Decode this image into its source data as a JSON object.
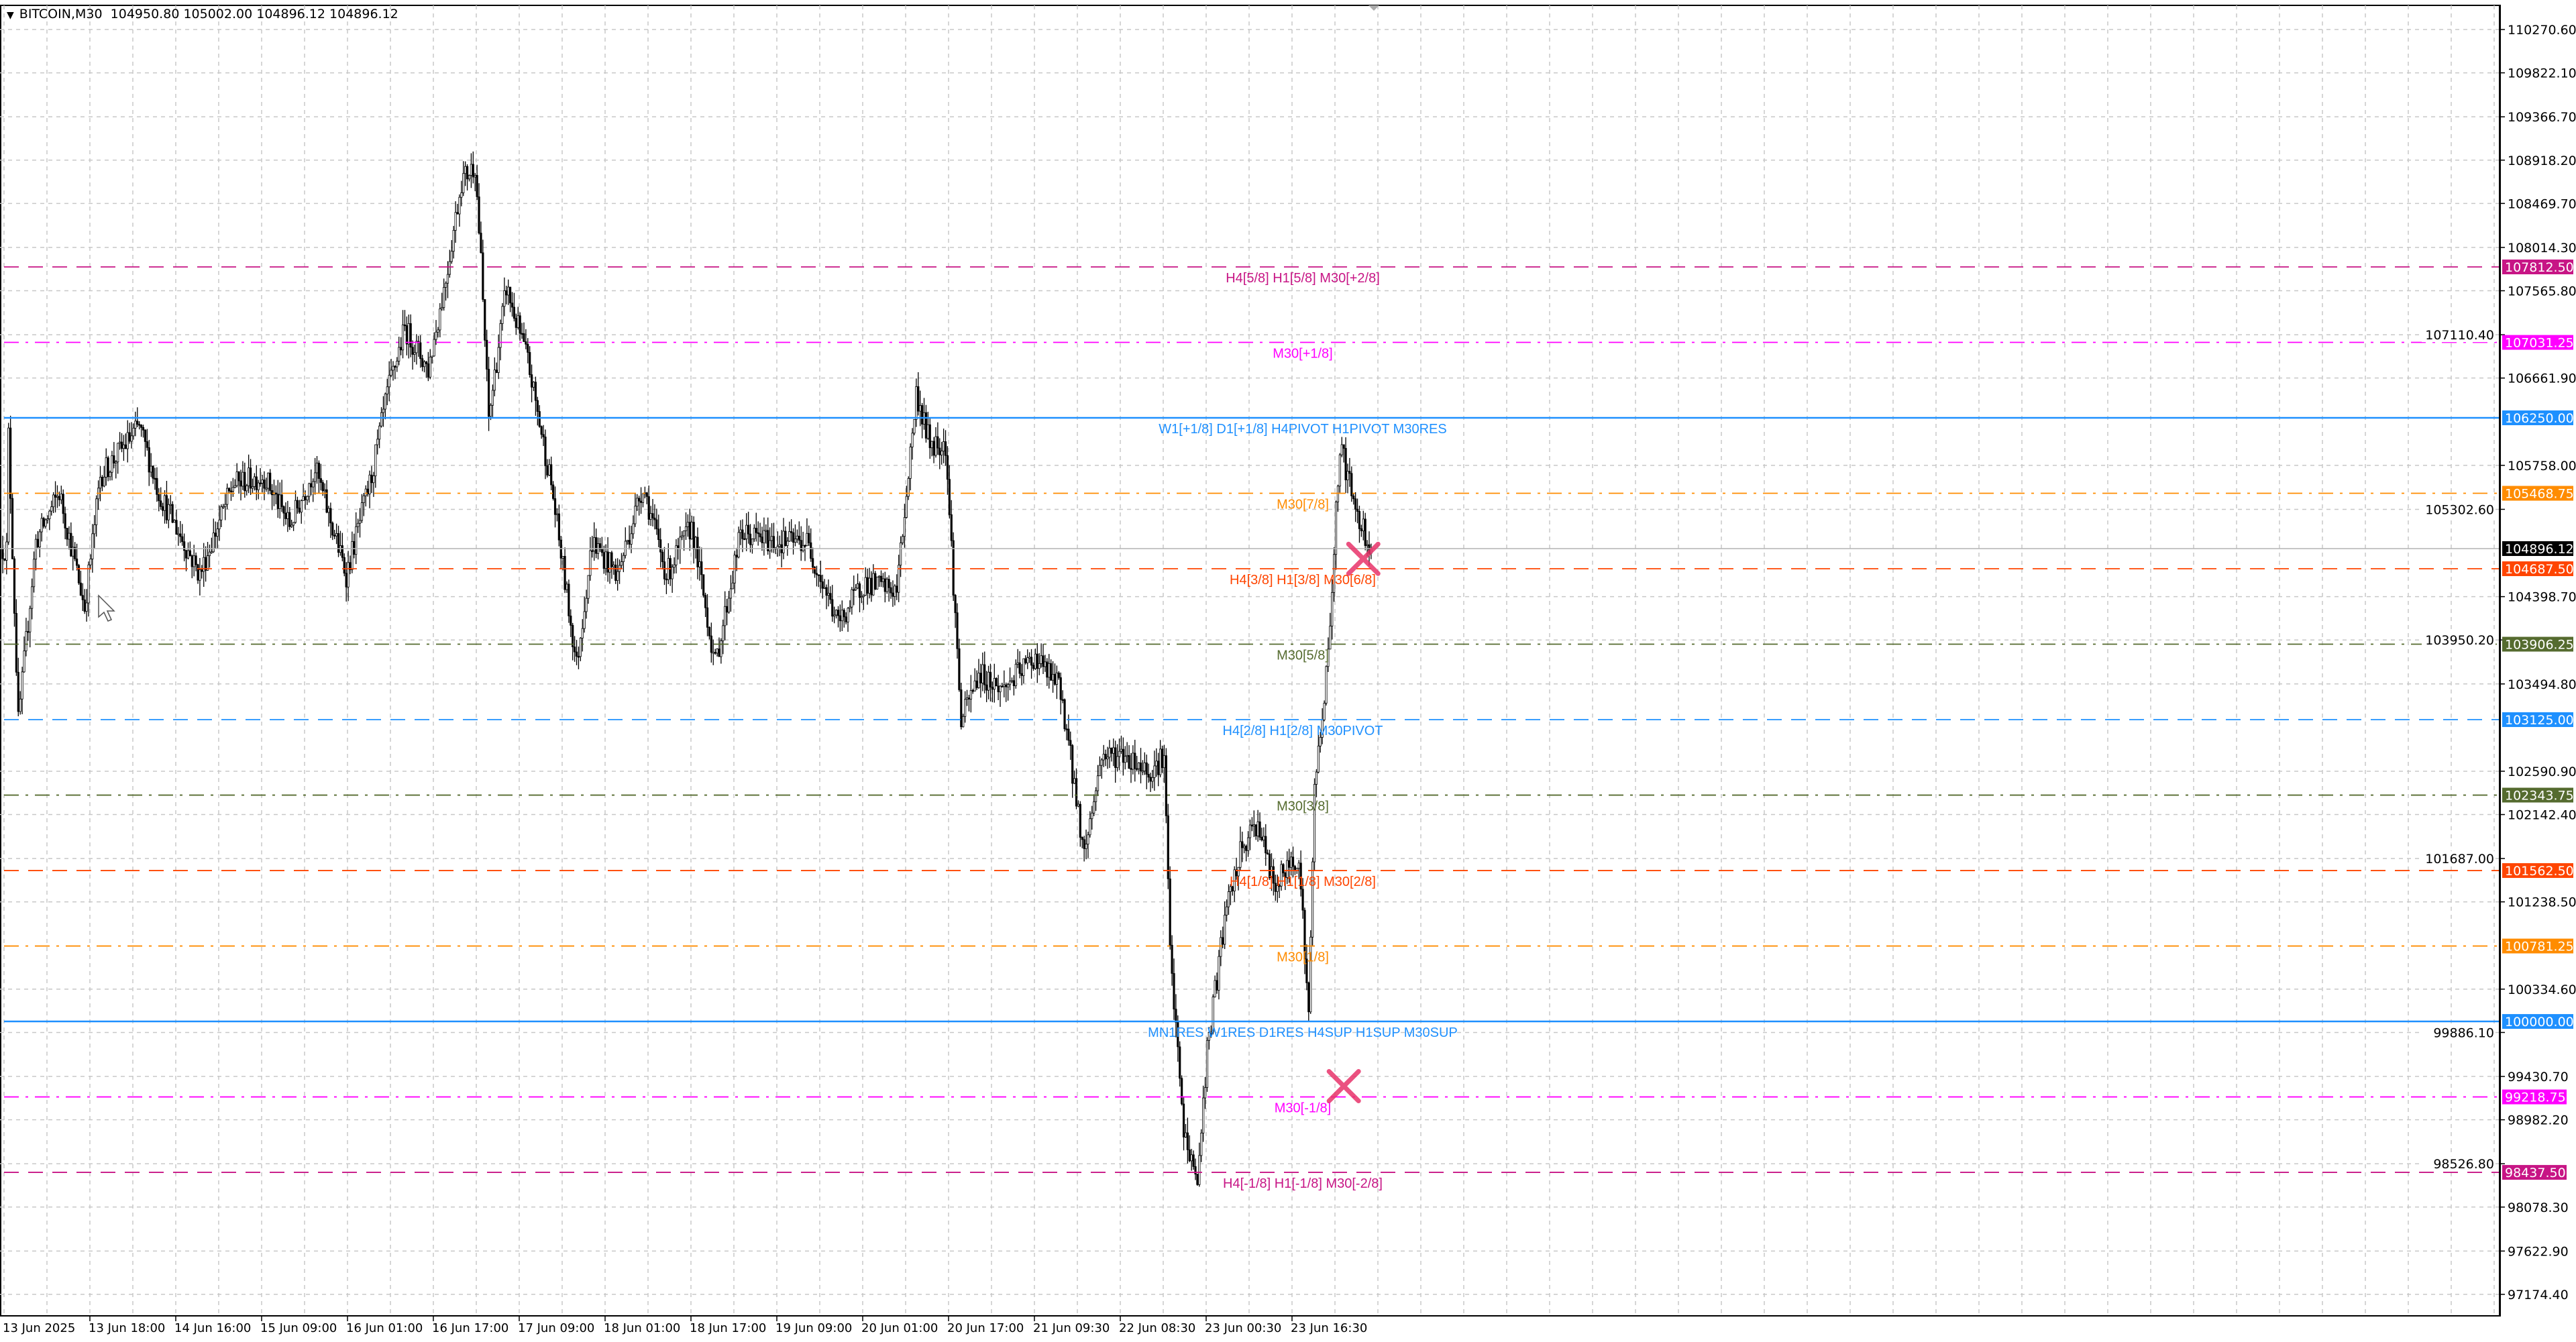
{
  "header": {
    "symbol": "BITCOIN,M30",
    "ohlc": "104950.80 105002.00 104896.12 104896.12",
    "collapse_icon": "triangle-down-icon"
  },
  "chart_data": {
    "type": "candlestick",
    "symbol": "BITCOIN",
    "timeframe": "M30",
    "ylim": [
      96900,
      110500
    ],
    "grid": true,
    "y_ticks": [
      "110270.60",
      "109822.10",
      "109366.70",
      "108918.20",
      "108469.70",
      "108014.30",
      "107565.80",
      "107110.40",
      "106661.90",
      "105758.00",
      "105302.60",
      "104398.70",
      "103950.20",
      "103494.80",
      "102590.90",
      "102142.40",
      "101687.00",
      "101238.50",
      "100334.60",
      "99886.10",
      "99430.70",
      "98982.20",
      "98526.80",
      "98078.30",
      "97622.90",
      "97174.40"
    ],
    "x_ticks": [
      "13 Jun 2025",
      "13 Jun 18:00",
      "14 Jun 16:00",
      "15 Jun 09:00",
      "16 Jun 01:00",
      "16 Jun 17:00",
      "17 Jun 09:00",
      "18 Jun 01:00",
      "18 Jun 17:00",
      "19 Jun 09:00",
      "20 Jun 01:00",
      "20 Jun 17:00",
      "21 Jun 09:30",
      "22 Jun 08:30",
      "23 Jun 00:30",
      "23 Jun 16:30"
    ],
    "current_price": {
      "value": 104896.12,
      "label": "104896.12",
      "color": "#000000"
    },
    "approx_close_path": [
      [
        3,
        106071
      ],
      [
        8,
        103097
      ],
      [
        17,
        104967
      ],
      [
        29,
        105477
      ],
      [
        42,
        104287
      ],
      [
        50,
        105647
      ],
      [
        70,
        106157
      ],
      [
        80,
        105477
      ],
      [
        101,
        104627
      ],
      [
        118,
        105562
      ],
      [
        134,
        105647
      ],
      [
        147,
        105137
      ],
      [
        160,
        105732
      ],
      [
        176,
        104627
      ],
      [
        189,
        105647
      ],
      [
        197,
        106497
      ],
      [
        206,
        107177
      ],
      [
        218,
        106752
      ],
      [
        227,
        107687
      ],
      [
        235,
        108707
      ],
      [
        242,
        108877
      ],
      [
        245,
        107857
      ],
      [
        249,
        106242
      ],
      [
        258,
        107602
      ],
      [
        269,
        106837
      ],
      [
        281,
        105562
      ],
      [
        294,
        103692
      ],
      [
        302,
        104967
      ],
      [
        315,
        104627
      ],
      [
        328,
        105562
      ],
      [
        340,
        104627
      ],
      [
        353,
        105137
      ],
      [
        365,
        103692
      ],
      [
        378,
        105052
      ],
      [
        395,
        104967
      ],
      [
        412,
        104967
      ],
      [
        428,
        104117
      ],
      [
        441,
        104542
      ],
      [
        458,
        104457
      ],
      [
        468,
        106497
      ],
      [
        475,
        105987
      ],
      [
        483,
        105987
      ],
      [
        491,
        103097
      ],
      [
        500,
        103607
      ],
      [
        512,
        103437
      ],
      [
        529,
        103777
      ],
      [
        542,
        103437
      ],
      [
        554,
        101737
      ],
      [
        563,
        102757
      ],
      [
        575,
        102757
      ],
      [
        588,
        102587
      ],
      [
        595,
        102757
      ],
      [
        598,
        100717
      ],
      [
        605,
        98847
      ],
      [
        612,
        98337
      ],
      [
        617,
        99697
      ],
      [
        626,
        101057
      ],
      [
        634,
        101737
      ],
      [
        643,
        102077
      ],
      [
        651,
        101397
      ],
      [
        664,
        101737
      ],
      [
        669,
        100037
      ],
      [
        672,
        102417
      ],
      [
        679,
        103777
      ],
      [
        685,
        105987
      ],
      [
        693,
        105307
      ],
      [
        701,
        104896
      ]
    ],
    "levels": [
      {
        "price": 107812.5,
        "label": "107812.50",
        "text": "H4[5/8] H1[5/8] M30[+2/8]",
        "color": "#C71585",
        "style": "dashed"
      },
      {
        "price": 107031.25,
        "label": "107031.25",
        "text": "M30[+1/8]",
        "color": "#FF00FF",
        "style": "dashdot"
      },
      {
        "price": 106250.0,
        "label": "106250.00",
        "text": "W1[+1/8] D1[+1/8] H4PIVOT H1PIVOT M30RES",
        "color": "#1E90FF",
        "style": "solid"
      },
      {
        "price": 105468.75,
        "label": "105468.75",
        "text": "M30[7/8]",
        "color": "#FF8C00",
        "style": "dashdot"
      },
      {
        "price": 104687.5,
        "label": "104687.50",
        "text": "H4[3/8] H1[3/8] M30[6/8]",
        "color": "#FF4500",
        "style": "dashed"
      },
      {
        "price": 103906.25,
        "label": "103906.25",
        "text": "M30[5/8]",
        "color": "#556B2F",
        "style": "dashdot"
      },
      {
        "price": 103125.0,
        "label": "103125.00",
        "text": "H4[2/8] H1[2/8] M30PIVOT",
        "color": "#1E90FF",
        "style": "dashed"
      },
      {
        "price": 102343.75,
        "label": "102343.75",
        "text": "M30[3/8]",
        "color": "#556B2F",
        "style": "dashdot"
      },
      {
        "price": 101562.5,
        "label": "101562.50",
        "text": "H4[1/8] H1[1/8] M30[2/8]",
        "color": "#FF4500",
        "style": "dashed"
      },
      {
        "price": 100781.25,
        "label": "100781.25",
        "text": "M30[1/8]",
        "color": "#FF8C00",
        "style": "dashdot"
      },
      {
        "price": 100000.0,
        "label": "100000.00",
        "text": "MN1RES W1RES D1RES H4SUP H1SUP M30SUP",
        "color": "#1E90FF",
        "style": "solid"
      },
      {
        "price": 99218.75,
        "label": "99218.75",
        "text": "M30[-1/8]",
        "color": "#FF00FF",
        "style": "dashdot"
      },
      {
        "price": 98437.5,
        "label": "98437.50",
        "text": "H4[-1/8] H1[-1/8] M30[-2/8]",
        "color": "#C71585",
        "style": "dashed"
      }
    ],
    "markers": [
      {
        "type": "cross",
        "bar": 697,
        "price": 104790,
        "color": "#E8336A"
      },
      {
        "type": "cross",
        "bar": 687,
        "price": 99330,
        "color": "#E8336A"
      }
    ]
  }
}
